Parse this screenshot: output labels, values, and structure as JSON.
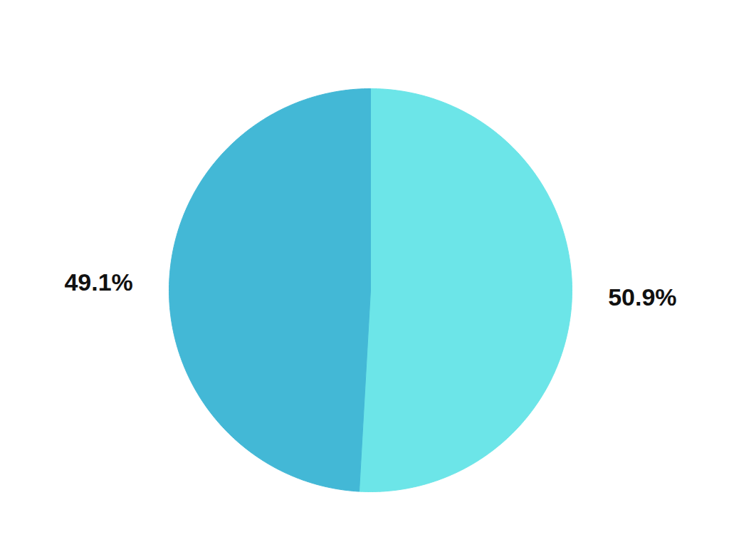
{
  "chart_data": {
    "type": "pie",
    "values": [
      50.9,
      49.1
    ],
    "colors": [
      "#6ce5e8",
      "#43b8d6"
    ],
    "data_labels": true,
    "value_labels": [
      "50.9%",
      "49.1%"
    ],
    "tick_labels": false
  }
}
